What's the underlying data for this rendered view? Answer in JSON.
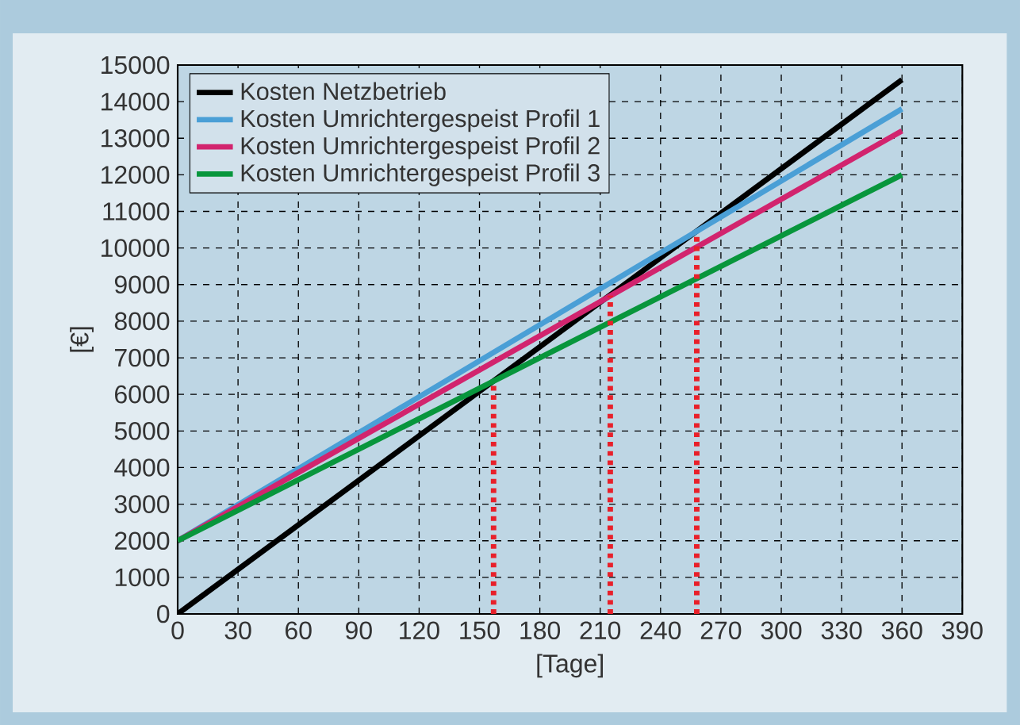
{
  "chart_data": {
    "type": "line",
    "xlabel": "[Tage]",
    "ylabel": "[€]",
    "xlim": [
      0,
      390
    ],
    "ylim": [
      0,
      15000
    ],
    "xticks": [
      0,
      30,
      60,
      90,
      120,
      150,
      180,
      210,
      240,
      270,
      300,
      330,
      360,
      390
    ],
    "yticks": [
      0,
      1000,
      2000,
      3000,
      4000,
      5000,
      6000,
      7000,
      8000,
      9000,
      10000,
      11000,
      12000,
      13000,
      14000,
      15000
    ],
    "grid": true,
    "legend": "top left",
    "line_style": "solid",
    "marker": "none",
    "series": [
      {
        "name": "Kosten Netzbetrieb",
        "color": "#000000",
        "x": [
          0,
          360
        ],
        "values": [
          0,
          14600
        ]
      },
      {
        "name": "Kosten Umrichtergespeist Profil 1",
        "color": "#4a9fd6",
        "x": [
          0,
          360
        ],
        "values": [
          2000,
          13800
        ]
      },
      {
        "name": "Kosten Umrichtergespeist Profil 2",
        "color": "#d2246e",
        "x": [
          0,
          360
        ],
        "values": [
          2000,
          13200
        ]
      },
      {
        "name": "Kosten Umrichtergespeist Profil 3",
        "color": "#08963c",
        "x": [
          0,
          360
        ],
        "values": [
          2000,
          12000
        ]
      },
      {
        "color": "#e8202a",
        "line_style": "dotted",
        "x": [
          157,
          157
        ],
        "values": [
          0,
          6300
        ]
      },
      {
        "color": "#e8202a",
        "line_style": "dotted",
        "x": [
          215,
          215
        ],
        "values": [
          0,
          8700
        ]
      },
      {
        "color": "#e8202a",
        "line_style": "dotted",
        "x": [
          258,
          258
        ],
        "values": [
          0,
          10400
        ]
      }
    ]
  }
}
